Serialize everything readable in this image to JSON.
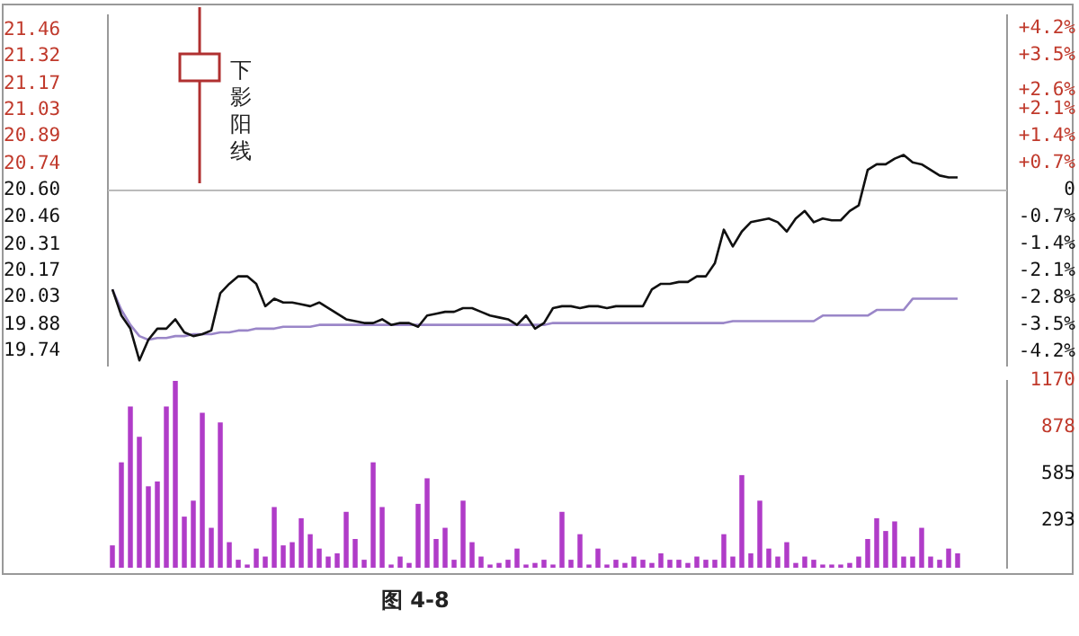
{
  "chart_data": [
    {
      "type": "line",
      "categories": [
        null,
        null,
        null,
        null,
        null,
        null,
        null,
        null,
        null,
        null,
        null,
        null,
        null,
        null,
        null,
        null,
        null,
        null,
        null,
        null,
        null,
        null,
        null,
        null,
        null,
        null,
        null,
        null,
        null,
        null,
        null,
        null,
        null,
        null,
        null,
        null,
        null,
        null,
        null,
        null,
        null,
        null,
        null,
        null,
        null,
        null,
        null,
        null,
        null,
        null,
        null,
        null,
        null,
        null,
        null,
        null,
        null,
        null,
        null,
        null,
        null,
        null,
        null,
        null,
        null,
        null,
        null,
        null,
        null,
        null,
        null,
        null,
        null,
        null,
        null,
        null,
        null,
        null,
        null,
        null,
        null,
        null,
        null,
        null,
        null,
        null,
        null,
        null,
        null,
        null,
        null,
        null,
        null,
        null,
        null,
        null,
        null,
        null,
        null,
        null
      ],
      "series": [
        {
          "color": "#111111",
          "values": [
            20.07,
            19.93,
            19.86,
            19.69,
            19.8,
            19.86,
            19.86,
            19.91,
            19.84,
            19.82,
            19.83,
            19.85,
            20.05,
            20.1,
            20.14,
            20.14,
            20.1,
            19.98,
            20.02,
            20.0,
            20.0,
            19.99,
            19.98,
            20.0,
            19.97,
            19.94,
            19.91,
            19.9,
            19.89,
            19.89,
            19.91,
            19.88,
            19.89,
            19.89,
            19.87,
            19.93,
            19.94,
            19.95,
            19.95,
            19.97,
            19.97,
            19.95,
            19.93,
            19.92,
            19.91,
            19.88,
            19.93,
            19.86,
            19.89,
            19.97,
            19.98,
            19.98,
            19.97,
            19.98,
            19.98,
            19.97,
            19.98,
            19.98,
            19.98,
            19.98,
            20.07,
            20.1,
            20.1,
            20.11,
            20.11,
            20.14,
            20.14,
            20.21,
            20.39,
            20.3,
            20.38,
            20.43,
            20.44,
            20.45,
            20.43,
            20.38,
            20.45,
            20.49,
            20.43,
            20.45,
            20.44,
            20.44,
            20.49,
            20.52,
            20.71,
            20.74,
            20.74,
            20.77,
            20.79,
            20.75,
            20.74,
            20.71,
            20.68,
            20.67,
            20.67,
            null,
            null,
            null,
            null,
            null
          ]
        },
        {
          "color": "#9a86c8",
          "values": [
            20.07,
            19.96,
            19.88,
            19.82,
            19.8,
            19.81,
            19.81,
            19.82,
            19.82,
            19.83,
            19.83,
            19.83,
            19.84,
            19.84,
            19.85,
            19.85,
            19.86,
            19.86,
            19.86,
            19.87,
            19.87,
            19.87,
            19.87,
            19.88,
            19.88,
            19.88,
            19.88,
            19.88,
            19.88,
            19.88,
            19.88,
            19.88,
            19.88,
            19.88,
            19.88,
            19.88,
            19.88,
            19.88,
            19.88,
            19.88,
            19.88,
            19.88,
            19.88,
            19.88,
            19.88,
            19.88,
            19.88,
            19.88,
            19.88,
            19.89,
            19.89,
            19.89,
            19.89,
            19.89,
            19.89,
            19.89,
            19.89,
            19.89,
            19.89,
            19.89,
            19.89,
            19.89,
            19.89,
            19.89,
            19.89,
            19.89,
            19.89,
            19.89,
            19.89,
            19.9,
            19.9,
            19.9,
            19.9,
            19.9,
            19.9,
            19.9,
            19.9,
            19.9,
            19.9,
            19.93,
            19.93,
            19.93,
            19.93,
            19.93,
            19.93,
            19.96,
            19.96,
            19.96,
            19.96,
            20.02,
            20.02,
            20.02,
            20.02,
            20.02,
            20.02,
            null,
            null,
            null,
            null,
            null
          ]
        }
      ],
      "ylim": [
        19.66,
        21.54
      ],
      "yticks": [
        19.74,
        19.88,
        20.03,
        20.17,
        20.31,
        20.46,
        {
          "value": 20.6,
          "label": "20.60"
        },
        20.74,
        20.89,
        21.03,
        21.17,
        21.32,
        21.46
      ],
      "y2lim": [
        -4.56,
        4.56
      ],
      "y2ticks": [
        {
          "value": -4.2,
          "label": "-4.2%"
        },
        {
          "value": -3.5,
          "label": "-3.5%"
        },
        {
          "value": -2.8,
          "label": "-2.8%"
        },
        {
          "value": -2.1,
          "label": "-2.1%"
        },
        {
          "value": -1.4,
          "label": "-1.4%"
        },
        {
          "value": -0.7,
          "label": "-0.7%"
        },
        0,
        {
          "value": 0.7,
          "label": "+0.7%"
        },
        {
          "value": 1.4,
          "label": "+1.4%"
        },
        {
          "value": 2.1,
          "label": "+2.1%"
        },
        {
          "value": 2.6,
          "label": "+2.6%"
        },
        {
          "value": 3.5,
          "label": "+3.5%"
        },
        {
          "value": 4.2,
          "label": "+4.2%"
        }
      ],
      "ref_lines": [
        {
          "axis": "y",
          "value": 20.6,
          "color": "#bbbbbb"
        }
      ],
      "tick_labels": "y",
      "marker": "none",
      "grid": false,
      "legend": false,
      "annotations": [
        "下影阳线"
      ]
    },
    {
      "type": "bar",
      "categories": [
        null,
        null,
        null,
        null,
        null,
        null,
        null,
        null,
        null,
        null,
        null,
        null,
        null,
        null,
        null,
        null,
        null,
        null,
        null,
        null,
        null,
        null,
        null,
        null,
        null,
        null,
        null,
        null,
        null,
        null,
        null,
        null,
        null,
        null,
        null,
        null,
        null,
        null,
        null,
        null,
        null,
        null,
        null,
        null,
        null,
        null,
        null,
        null,
        null,
        null,
        null,
        null,
        null,
        null,
        null,
        null,
        null,
        null,
        null,
        null,
        null,
        null,
        null,
        null,
        null,
        null,
        null,
        null,
        null,
        null,
        null,
        null,
        null,
        null,
        null,
        null,
        null,
        null,
        null,
        null,
        null,
        null,
        null,
        null,
        null,
        null,
        null,
        null,
        null,
        null,
        null,
        null,
        null,
        null,
        null,
        null,
        null,
        null,
        null,
        null
      ],
      "series": [
        {
          "color": "#b03cc8",
          "axis": "y2",
          "values": [
            140,
            660,
            1010,
            820,
            510,
            540,
            1010,
            1170,
            320,
            420,
            970,
            250,
            910,
            160,
            50,
            20,
            120,
            70,
            380,
            140,
            160,
            310,
            210,
            120,
            70,
            90,
            350,
            180,
            50,
            660,
            380,
            20,
            70,
            30,
            400,
            560,
            180,
            250,
            50,
            420,
            160,
            70,
            20,
            30,
            50,
            120,
            20,
            30,
            50,
            20,
            350,
            50,
            210,
            20,
            120,
            20,
            50,
            30,
            70,
            50,
            30,
            90,
            50,
            50,
            30,
            70,
            50,
            50,
            210,
            70,
            580,
            90,
            420,
            120,
            70,
            160,
            30,
            70,
            50,
            20,
            20,
            20,
            30,
            70,
            180,
            310,
            230,
            290,
            70,
            70,
            250,
            70,
            50,
            120,
            90,
            null,
            null,
            null,
            null,
            null
          ]
        }
      ],
      "y2lim": [
        0,
        1170
      ],
      "y2ticks": [
        293,
        585,
        878,
        1170
      ],
      "tick_labels": "y",
      "grid": false,
      "legend": false,
      "annotations": [
        "图 4-8"
      ]
    }
  ]
}
